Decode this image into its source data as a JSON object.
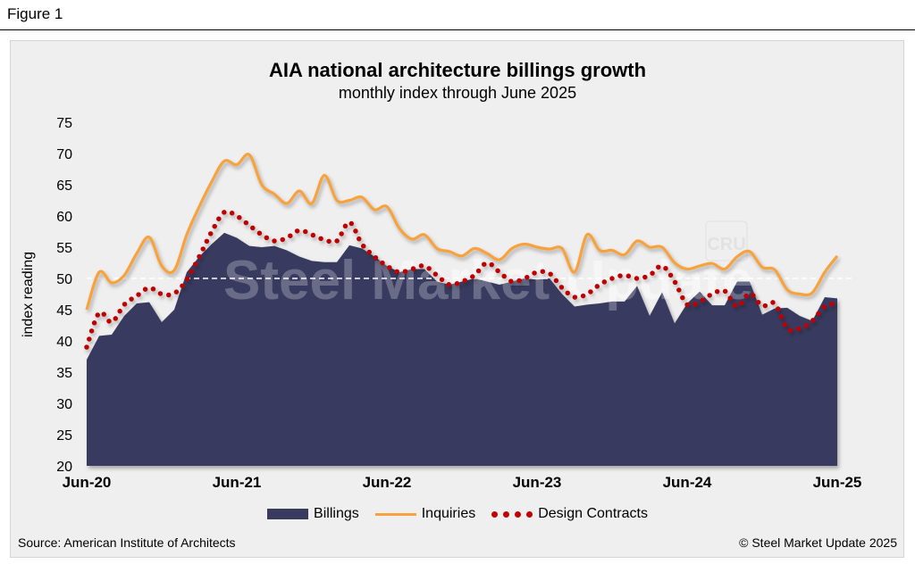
{
  "figure_label": "Figure 1",
  "watermark": "Steel Market Update",
  "watermark_badge": "CRU",
  "source": "Source: American Institute of Architects",
  "copyright": "© Steel Market Update 2025",
  "colors": {
    "billings": "#383a5e",
    "inquiries": "#f7a23e",
    "design_contracts": "#c00000",
    "background": "#efefef"
  },
  "chart_data": {
    "type": "area",
    "title": "AIA national architecture billings growth",
    "subtitle": "monthly index through June 2025",
    "xlabel": "",
    "ylabel": "index reading",
    "ylim": [
      20,
      75
    ],
    "yticks": [
      20,
      25,
      30,
      35,
      40,
      45,
      50,
      55,
      60,
      65,
      70,
      75
    ],
    "x_start": "Jun-20",
    "x_end": "Jun-25",
    "xtick_labels": [
      "Jun-20",
      "Jun-21",
      "Jun-22",
      "Jun-23",
      "Jun-24",
      "Jun-25"
    ],
    "reference_line": 50,
    "legend_position": "bottom",
    "series": [
      {
        "name": "Billings",
        "style": "area",
        "values": [
          37,
          40.8,
          41,
          44,
          46,
          46.2,
          43,
          45,
          51,
          53.5,
          55.5,
          57.3,
          56.5,
          55.2,
          55,
          55.2,
          54.5,
          53.5,
          52.8,
          52.6,
          52.6,
          55.3,
          54.8,
          53.5,
          52,
          51,
          51.5,
          51.5,
          49.5,
          49,
          49.5,
          50,
          49.5,
          49,
          49.5,
          50,
          49.8,
          50,
          47.5,
          45.5,
          45.8,
          46,
          46.3,
          46.3,
          48.8,
          44,
          47.8,
          42.8,
          46,
          47.9,
          45.7,
          45.7,
          49.5,
          49.5,
          44.2,
          45.2,
          45.3,
          44,
          43.2,
          47,
          46.8
        ]
      },
      {
        "name": "Inquiries",
        "style": "line",
        "values": [
          45,
          51,
          49.3,
          50.5,
          54,
          56.6,
          52,
          51.3,
          57,
          61.5,
          65.5,
          68.8,
          68.2,
          69.8,
          65,
          63.5,
          62,
          64,
          62,
          66.5,
          62.5,
          62.5,
          63,
          61,
          61.5,
          58,
          56.3,
          57,
          54.8,
          54.3,
          53.6,
          54.8,
          54,
          53,
          54.8,
          55.5,
          55,
          54.7,
          54.8,
          51,
          57,
          54.5,
          54.5,
          53.8,
          56,
          55,
          55,
          52.5,
          51.5,
          52,
          52.4,
          51.5,
          53.5,
          54.3,
          51.8,
          51.4,
          48.2,
          47.5,
          47.7,
          51,
          53.6
        ]
      },
      {
        "name": "Design Contracts",
        "style": "dotted",
        "values": [
          39,
          44.5,
          43,
          45.8,
          47.2,
          48.5,
          47.5,
          47.6,
          49.8,
          53.5,
          57.5,
          60.6,
          60,
          58.5,
          57,
          56,
          56.5,
          57.7,
          57,
          56.2,
          56,
          59,
          55.5,
          53.5,
          52,
          51,
          51.5,
          52,
          50.5,
          49,
          49.5,
          50.5,
          52.5,
          51,
          49.5,
          50,
          51,
          50.8,
          48.5,
          47,
          47.5,
          49,
          50,
          50.5,
          50,
          50.5,
          52,
          49.5,
          45.8,
          46.3,
          47.5,
          48,
          45.5,
          47.6,
          45.6,
          46,
          42,
          42,
          43.2,
          45.5,
          46
        ]
      }
    ]
  }
}
